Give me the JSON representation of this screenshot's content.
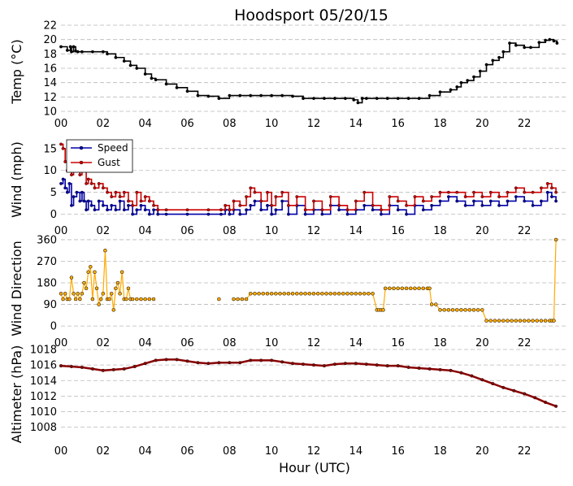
{
  "chart_data": [
    {
      "type": "line",
      "title": "Hoodsport 05/20/15",
      "ylabel": "Temp (°C)",
      "ylim": [
        10,
        22
      ],
      "yticks": [
        "10",
        "12",
        "14",
        "16",
        "18",
        "20",
        "22"
      ],
      "xlim": [
        0,
        24
      ],
      "xticks": [
        "00",
        "02",
        "04",
        "06",
        "08",
        "10",
        "12",
        "14",
        "16",
        "18",
        "20",
        "22"
      ],
      "grid": "horizontal dashed",
      "series": [
        {
          "color": "#000000",
          "x": [
            0,
            0.3,
            0.45,
            0.5,
            0.6,
            0.7,
            0.8,
            1.0,
            1.5,
            2.0,
            2.2,
            2.6,
            3.0,
            3.3,
            3.6,
            4.0,
            4.3,
            4.5,
            5.0,
            5.5,
            6.0,
            6.5,
            7.0,
            7.5,
            8.0,
            8.5,
            9.0,
            9.5,
            10.0,
            10.5,
            11.0,
            11.5,
            12.0,
            12.5,
            13.0,
            13.5,
            13.9,
            14.1,
            14.3,
            14.5,
            15.0,
            15.5,
            16.0,
            16.5,
            17.0,
            17.5,
            18.0,
            18.5,
            18.8,
            19.0,
            19.3,
            19.6,
            19.9,
            20.2,
            20.5,
            20.8,
            21.0,
            21.3,
            21.6,
            22.0,
            22.3,
            22.7,
            23.0,
            23.2,
            23.4,
            23.55
          ],
          "values": [
            19,
            18.5,
            19,
            18.3,
            19,
            18.4,
            18.3,
            18.3,
            18.3,
            18.3,
            18.0,
            17.5,
            17.0,
            16.4,
            16.0,
            15.2,
            14.6,
            14.4,
            13.8,
            13.3,
            12.8,
            12.2,
            12.1,
            11.8,
            12.2,
            12.2,
            12.2,
            12.2,
            12.2,
            12.2,
            12.1,
            11.8,
            11.8,
            11.8,
            11.8,
            11.8,
            11.6,
            11.2,
            11.8,
            11.8,
            11.8,
            11.8,
            11.8,
            11.8,
            11.8,
            12.2,
            12.7,
            13.0,
            13.4,
            14.0,
            14.3,
            14.8,
            15.6,
            16.5,
            17.1,
            17.5,
            18.3,
            19.5,
            19.2,
            18.9,
            18.9,
            19.6,
            19.9,
            20.0,
            19.8,
            19.5
          ]
        }
      ]
    },
    {
      "type": "line",
      "ylabel": "Wind (mph)",
      "ylim": [
        -1,
        17
      ],
      "yticks": [
        "0",
        "5",
        "10",
        "15"
      ],
      "xlim": [
        0,
        24
      ],
      "xticks": [
        "00",
        "02",
        "04",
        "06",
        "08",
        "10",
        "12",
        "14",
        "16",
        "18",
        "20",
        "22"
      ],
      "grid": "horizontal dashed",
      "legend": "top-left",
      "series": [
        {
          "name": "Speed",
          "color": "#0000aa",
          "x": [
            0,
            0.1,
            0.2,
            0.3,
            0.4,
            0.5,
            0.6,
            0.75,
            0.9,
            1.0,
            1.1,
            1.2,
            1.3,
            1.45,
            1.6,
            1.8,
            2.0,
            2.2,
            2.4,
            2.6,
            2.8,
            3.0,
            3.2,
            3.4,
            3.6,
            3.8,
            4.0,
            4.2,
            4.4,
            4.6,
            5.0,
            6.0,
            7.0,
            7.6,
            7.8,
            8.0,
            8.2,
            8.5,
            8.8,
            9.0,
            9.2,
            9.5,
            9.8,
            10.0,
            10.2,
            10.5,
            10.8,
            11.2,
            11.6,
            12.0,
            12.4,
            12.8,
            13.2,
            13.6,
            14.0,
            14.4,
            14.8,
            15.2,
            15.6,
            16.0,
            16.4,
            16.8,
            17.2,
            17.6,
            18.0,
            18.4,
            18.8,
            19.2,
            19.6,
            20.0,
            20.4,
            20.8,
            21.2,
            21.6,
            22.0,
            22.4,
            22.8,
            23.1,
            23.3,
            23.5
          ],
          "values": [
            7,
            8,
            6,
            5,
            7,
            2,
            4,
            5,
            3,
            5,
            3,
            1,
            3,
            2,
            1,
            3,
            2,
            1,
            2,
            1,
            3,
            1,
            2,
            0,
            1,
            2,
            1,
            0,
            1,
            0,
            0,
            0,
            0,
            0,
            1,
            0,
            1,
            0,
            1,
            2,
            3,
            1,
            2,
            0,
            1,
            3,
            0,
            2,
            0,
            1,
            0,
            2,
            1,
            0,
            1,
            2,
            1,
            0,
            2,
            1,
            0,
            2,
            1,
            2,
            3,
            4,
            3,
            2,
            3,
            2,
            3,
            2,
            3,
            4,
            3,
            2,
            3,
            5,
            4,
            3
          ]
        },
        {
          "name": "Gust",
          "color": "#cc0000",
          "x": [
            0,
            0.1,
            0.2,
            0.3,
            0.4,
            0.5,
            0.6,
            0.75,
            0.9,
            1.0,
            1.1,
            1.2,
            1.3,
            1.45,
            1.6,
            1.8,
            2.0,
            2.2,
            2.4,
            2.6,
            2.8,
            3.0,
            3.2,
            3.4,
            3.6,
            3.8,
            4.0,
            4.2,
            4.4,
            4.6,
            5.0,
            6.0,
            7.0,
            7.6,
            7.8,
            8.0,
            8.2,
            8.5,
            8.8,
            9.0,
            9.2,
            9.5,
            9.8,
            10.0,
            10.2,
            10.5,
            10.8,
            11.2,
            11.6,
            12.0,
            12.4,
            12.8,
            13.2,
            13.6,
            14.0,
            14.4,
            14.8,
            15.2,
            15.6,
            16.0,
            16.4,
            16.8,
            17.2,
            17.6,
            18.0,
            18.4,
            18.8,
            19.2,
            19.6,
            20.0,
            20.4,
            20.8,
            21.2,
            21.6,
            22.0,
            22.4,
            22.8,
            23.1,
            23.3,
            23.5
          ],
          "values": [
            16,
            15,
            12,
            10,
            13,
            9,
            10,
            12,
            9,
            10,
            11,
            7,
            8,
            7,
            6,
            7,
            6,
            5,
            4,
            5,
            4,
            5,
            3,
            2,
            5,
            3,
            4,
            3,
            2,
            1,
            1,
            1,
            1,
            1,
            2,
            1,
            3,
            2,
            4,
            6,
            5,
            3,
            5,
            2,
            4,
            5,
            2,
            4,
            1,
            3,
            1,
            4,
            2,
            1,
            3,
            5,
            2,
            1,
            4,
            3,
            2,
            4,
            3,
            4,
            5,
            5,
            5,
            4,
            5,
            4,
            5,
            4,
            5,
            6,
            5,
            5,
            6,
            7,
            6,
            5
          ]
        }
      ]
    },
    {
      "type": "scatter",
      "ylabel": "Wind Direction",
      "ylim": [
        -20,
        370
      ],
      "yticks": [
        "0",
        "90",
        "180",
        "270",
        "360"
      ],
      "xlim": [
        0,
        24
      ],
      "xticks": [
        "00",
        "02",
        "04",
        "06",
        "08",
        "10",
        "12",
        "14",
        "16",
        "18",
        "20",
        "22"
      ],
      "grid": "horizontal dashed",
      "series": [
        {
          "color": "#ffaa00",
          "x": [
            0,
            0.1,
            0.2,
            0.3,
            0.4,
            0.5,
            0.6,
            0.7,
            0.8,
            0.9,
            1.0,
            1.1,
            1.2,
            1.3,
            1.4,
            1.5,
            1.6,
            1.7,
            1.8,
            1.9,
            2.0,
            2.1,
            2.2,
            2.3,
            2.4,
            2.5,
            2.6,
            2.7,
            2.8,
            2.9,
            3.0,
            3.1,
            3.2,
            3.3,
            3.4,
            3.6,
            3.8,
            4.0,
            4.2,
            4.4,
            7.5,
            8.2,
            8.4,
            8.6,
            8.8,
            9.0,
            9.2,
            9.4,
            9.6,
            9.8,
            10.0,
            10.2,
            10.4,
            10.6,
            10.8,
            11.0,
            11.2,
            11.4,
            11.6,
            11.8,
            12.0,
            12.2,
            12.4,
            12.6,
            12.8,
            13.0,
            13.2,
            13.4,
            13.6,
            13.8,
            14.0,
            14.2,
            14.4,
            14.6,
            14.8,
            15.0,
            15.1,
            15.2,
            15.3,
            15.4,
            15.6,
            15.8,
            16.0,
            16.2,
            16.4,
            16.6,
            16.8,
            17.0,
            17.2,
            17.4,
            17.5,
            17.6,
            17.8,
            18.0,
            18.2,
            18.4,
            18.6,
            18.8,
            19.0,
            19.2,
            19.4,
            19.6,
            19.8,
            20.0,
            20.2,
            20.4,
            20.6,
            20.8,
            21.0,
            21.2,
            21.4,
            21.6,
            21.8,
            22.0,
            22.2,
            22.4,
            22.6,
            22.8,
            23.0,
            23.2,
            23.3,
            23.4,
            23.5
          ],
          "values": [
            135,
            112,
            135,
            112,
            112,
            202,
            135,
            112,
            135,
            112,
            135,
            180,
            157,
            225,
            247,
            112,
            225,
            157,
            90,
            112,
            135,
            315,
            112,
            112,
            135,
            67,
            157,
            180,
            135,
            225,
            112,
            112,
            157,
            112,
            112,
            112,
            112,
            112,
            112,
            112,
            112,
            112,
            112,
            112,
            112,
            135,
            135,
            135,
            135,
            135,
            135,
            135,
            135,
            135,
            135,
            135,
            135,
            135,
            135,
            135,
            135,
            135,
            135,
            135,
            135,
            135,
            135,
            135,
            135,
            135,
            135,
            135,
            135,
            135,
            135,
            67,
            67,
            67,
            67,
            157,
            157,
            157,
            157,
            157,
            157,
            157,
            157,
            157,
            157,
            157,
            157,
            90,
            90,
            67,
            67,
            67,
            67,
            67,
            67,
            67,
            67,
            67,
            67,
            67,
            22,
            22,
            22,
            22,
            22,
            22,
            22,
            22,
            22,
            22,
            22,
            22,
            22,
            22,
            22,
            22,
            22,
            22,
            360
          ]
        }
      ]
    },
    {
      "type": "line",
      "ylabel": "Altimeter (hPa)",
      "xlabel": "Hour (UTC)",
      "ylim": [
        1006.5,
        1018
      ],
      "yticks": [
        "1008",
        "1010",
        "1012",
        "1014",
        "1016",
        "1018"
      ],
      "xlim": [
        0,
        24
      ],
      "xticks": [
        "00",
        "02",
        "04",
        "06",
        "08",
        "10",
        "12",
        "14",
        "16",
        "18",
        "20",
        "22"
      ],
      "grid": "horizontal dashed",
      "series": [
        {
          "color": "#8b0000",
          "x": [
            0,
            0.5,
            1.0,
            1.5,
            2.0,
            2.5,
            3.0,
            3.5,
            4.0,
            4.5,
            5.0,
            5.5,
            6.0,
            6.5,
            7.0,
            7.5,
            8.0,
            8.5,
            9.0,
            9.5,
            10.0,
            10.5,
            11.0,
            11.5,
            12.0,
            12.5,
            13.0,
            13.5,
            14.0,
            14.5,
            15.0,
            15.5,
            16.0,
            16.5,
            17.0,
            17.5,
            18.0,
            18.5,
            19.0,
            19.5,
            20.0,
            20.5,
            21.0,
            21.5,
            22.0,
            22.5,
            23.0,
            23.5
          ],
          "values": [
            1015.9,
            1015.8,
            1015.7,
            1015.5,
            1015.3,
            1015.4,
            1015.5,
            1015.8,
            1016.2,
            1016.6,
            1016.7,
            1016.7,
            1016.5,
            1016.3,
            1016.2,
            1016.3,
            1016.3,
            1016.3,
            1016.6,
            1016.6,
            1016.6,
            1016.4,
            1016.2,
            1016.1,
            1016.0,
            1015.9,
            1016.1,
            1016.2,
            1016.2,
            1016.1,
            1016.0,
            1015.9,
            1015.9,
            1015.7,
            1015.6,
            1015.5,
            1015.4,
            1015.3,
            1015.0,
            1014.6,
            1014.1,
            1013.6,
            1013.1,
            1012.7,
            1012.3,
            1011.8,
            1011.2,
            1010.7
          ]
        }
      ]
    }
  ]
}
